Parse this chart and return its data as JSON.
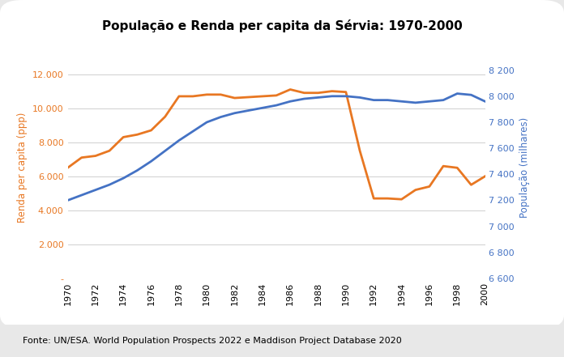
{
  "title": "População e Renda per capita da Sérvia: 1970-2000",
  "ylabel_left": "Renda per capita (ppp)",
  "ylabel_right": "População (milhares)",
  "source": "Fonte: UN/ESA. World Population Prospects 2022 e Maddison Project Database 2020",
  "years": [
    1970,
    1971,
    1972,
    1973,
    1974,
    1975,
    1976,
    1977,
    1978,
    1979,
    1980,
    1981,
    1982,
    1983,
    1984,
    1985,
    1986,
    1987,
    1988,
    1989,
    1990,
    1991,
    1992,
    1993,
    1994,
    1995,
    1996,
    1997,
    1998,
    1999,
    2000
  ],
  "renda": [
    6500,
    7100,
    7200,
    7500,
    8300,
    8450,
    8700,
    9500,
    10700,
    10700,
    10800,
    10800,
    10600,
    10650,
    10700,
    10750,
    11100,
    10900,
    10900,
    11000,
    10950,
    7500,
    4700,
    4700,
    4650,
    5200,
    5400,
    6600,
    6500,
    5500,
    6000
  ],
  "populacao": [
    7200,
    7240,
    7280,
    7320,
    7370,
    7430,
    7500,
    7580,
    7660,
    7730,
    7800,
    7840,
    7870,
    7890,
    7910,
    7930,
    7960,
    7980,
    7990,
    8000,
    8000,
    7990,
    7970,
    7970,
    7960,
    7950,
    7960,
    7970,
    8020,
    8010,
    7960
  ],
  "color_renda": "#E87722",
  "color_pop": "#4472C4",
  "ylim_left": [
    0,
    13000
  ],
  "ylim_right": [
    6600,
    8300
  ],
  "yticks_left": [
    0,
    2000,
    4000,
    6000,
    8000,
    10000,
    12000
  ],
  "yticks_left_labels": [
    "-",
    "2.000",
    "4.000",
    "6.000",
    "8.000",
    "10.000",
    "12.000"
  ],
  "yticks_right": [
    6600,
    6800,
    7000,
    7200,
    7400,
    7600,
    7800,
    8000,
    8200
  ],
  "yticks_right_labels": [
    "6 600",
    "6 800",
    "7 000",
    "7 200",
    "7 400",
    "7 600",
    "7 800",
    "8 000",
    "8 200"
  ],
  "xticks": [
    1970,
    1972,
    1974,
    1976,
    1978,
    1980,
    1982,
    1984,
    1986,
    1988,
    1990,
    1992,
    1994,
    1996,
    1998,
    2000
  ],
  "legend_renda": "Renda per capita",
  "legend_pop": "População",
  "background_color": "#FFFFFF",
  "outer_bg": "#E8E8E8",
  "box_bg": "#FFFFFF",
  "grid_color": "#C8C8C8",
  "linewidth": 2.0
}
